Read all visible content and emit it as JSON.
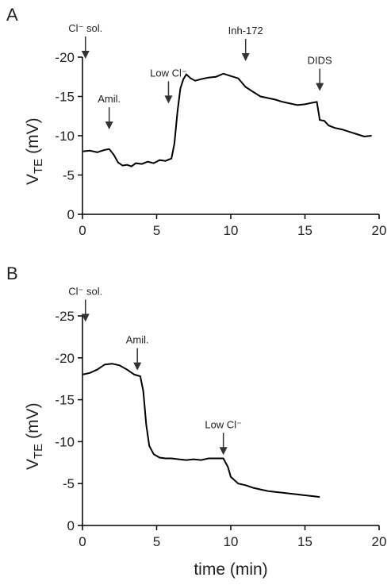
{
  "chart_data": [
    {
      "type": "line",
      "panel": "A",
      "y_label": {
        "symbol": "V",
        "subscript": "TE",
        "unit": "(mV)"
      },
      "xlim": [
        0,
        20
      ],
      "xticks": [
        0,
        5,
        10,
        15,
        20
      ],
      "ylim": [
        0,
        -20
      ],
      "yticks": [
        -20,
        -15,
        -10,
        -5,
        0
      ],
      "color": "#000000",
      "x": [
        0,
        0.5,
        1,
        1.5,
        1.8,
        2.1,
        2.4,
        2.7,
        3,
        3.3,
        3.6,
        4,
        4.4,
        4.8,
        5.2,
        5.6,
        6,
        6.2,
        6.4,
        6.6,
        6.8,
        7,
        7.3,
        7.6,
        8,
        8.5,
        9,
        9.5,
        10,
        10.5,
        11,
        11.5,
        12,
        12.5,
        13,
        13.5,
        14,
        14.5,
        15,
        15.5,
        15.8,
        16,
        16.3,
        16.6,
        17,
        17.5,
        18,
        18.5,
        19,
        19.5
      ],
      "values": [
        -8,
        -8.1,
        -7.9,
        -8.2,
        -8.3,
        -7.6,
        -6.6,
        -6.2,
        -6.3,
        -6.1,
        -6.5,
        -6.4,
        -6.7,
        -6.5,
        -6.9,
        -6.8,
        -7.1,
        -9,
        -13,
        -16,
        -17.2,
        -17.8,
        -17.3,
        -17,
        -17.2,
        -17.4,
        -17.5,
        -17.9,
        -17.6,
        -17.3,
        -16.2,
        -15.6,
        -15,
        -14.8,
        -14.6,
        -14.3,
        -14.1,
        -13.9,
        -14,
        -14.2,
        -14.3,
        -12,
        -11.9,
        -11.3,
        -11,
        -10.8,
        -10.5,
        -10.2,
        -9.9,
        -10
      ],
      "annotations": [
        {
          "text": "Cl⁻ sol.",
          "x": 0.2,
          "y": -19.8
        },
        {
          "text": "Amil.",
          "x": 1.8,
          "y": -10.8
        },
        {
          "text": "Low Cl⁻",
          "x": 5.8,
          "y": -14.1
        },
        {
          "text": "Inh-172",
          "x": 11,
          "y": -19.5
        },
        {
          "text": "DIDS",
          "x": 16,
          "y": -15.7
        }
      ]
    },
    {
      "type": "line",
      "panel": "B",
      "y_label": {
        "symbol": "V",
        "subscript": "TE",
        "unit": "(mV)"
      },
      "x_label": "time (min)",
      "xlim": [
        0,
        20
      ],
      "xticks": [
        0,
        5,
        10,
        15,
        20
      ],
      "ylim": [
        0,
        -25
      ],
      "yticks": [
        -25,
        -20,
        -15,
        -10,
        -5,
        0
      ],
      "color": "#000000",
      "x": [
        0,
        0.5,
        1,
        1.5,
        2,
        2.5,
        3,
        3.5,
        3.9,
        4.1,
        4.3,
        4.5,
        4.8,
        5.2,
        5.6,
        6,
        6.5,
        7,
        7.5,
        8,
        8.5,
        9,
        9.5,
        9.8,
        10,
        10.5,
        11,
        11.5,
        12,
        12.5,
        13,
        13.5,
        14,
        14.5,
        15,
        15.5,
        16
      ],
      "values": [
        -18,
        -18.2,
        -18.6,
        -19.2,
        -19.3,
        -19.1,
        -18.6,
        -18,
        -17.8,
        -16,
        -12,
        -9.5,
        -8.5,
        -8.1,
        -8,
        -8,
        -7.9,
        -7.8,
        -7.9,
        -7.8,
        -8,
        -8,
        -8,
        -7,
        -5.8,
        -5,
        -4.8,
        -4.5,
        -4.3,
        -4.1,
        -4,
        -3.9,
        -3.8,
        -3.7,
        -3.6,
        -3.5,
        -3.4
      ],
      "annotations": [
        {
          "text": "Cl⁻ sol.",
          "x": 0.2,
          "y": -24.3
        },
        {
          "text": "Amil.",
          "x": 3.7,
          "y": -18.5
        },
        {
          "text": "Low Cl⁻",
          "x": 9.5,
          "y": -8.4
        }
      ]
    }
  ]
}
